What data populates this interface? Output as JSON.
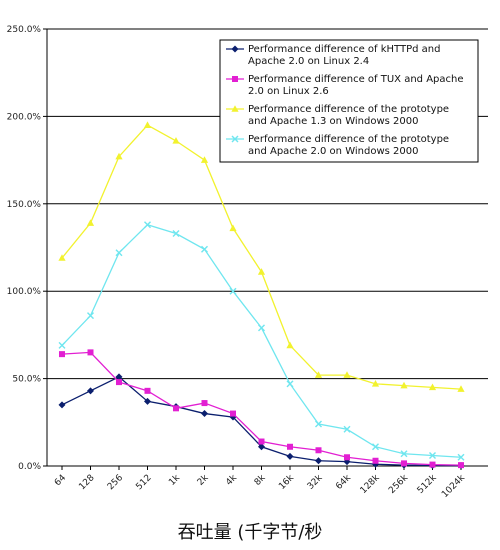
{
  "chart_data": {
    "type": "line",
    "title": "",
    "xlabel": "吞吐量 (千字节/秒",
    "ylabel": "",
    "categories": [
      "64",
      "128",
      "256",
      "512",
      "1k",
      "2k",
      "4k",
      "8k",
      "16k",
      "32k",
      "64k",
      "128k",
      "256k",
      "512k",
      "1024k"
    ],
    "ylim": [
      0,
      250
    ],
    "yticks": [
      "0.0%",
      "50.0%",
      "100.0%",
      "150.0%",
      "200.0%",
      "250.0%"
    ],
    "grid": "horizontal",
    "legend_position": "top-right",
    "series": [
      {
        "name": "Performance difference of kHTTPd and Apache 2.0 on Linux 2.4",
        "color": "#0b1f6e",
        "marker": "diamond",
        "values": [
          35,
          43,
          51,
          37,
          34,
          30,
          28,
          11,
          5.5,
          3,
          2.5,
          1,
          0.5,
          0.3,
          0.2
        ]
      },
      {
        "name": "Performance difference of TUX and Apache 2.0 on Linux 2.6",
        "color": "#e21fd2",
        "marker": "square",
        "values": [
          64,
          65,
          48,
          43,
          33,
          36,
          30,
          14,
          11,
          9,
          5,
          3,
          1.5,
          0.8,
          0.5
        ]
      },
      {
        "name": "Performance difference of the prototype and Apache 1.3 on Windows 2000",
        "color": "#f2f22e",
        "marker": "triangle",
        "values": [
          119,
          139,
          177,
          195,
          186,
          175,
          136,
          111,
          69,
          52,
          52,
          47,
          46,
          45,
          44
        ]
      },
      {
        "name": "Performance difference of the prototype and Apache 2.0 on Windows 2000",
        "color": "#6fe6ef",
        "marker": "x",
        "values": [
          69,
          86,
          122,
          138,
          133,
          124,
          100,
          79,
          47,
          24,
          21,
          11,
          7,
          6,
          5
        ]
      }
    ]
  }
}
